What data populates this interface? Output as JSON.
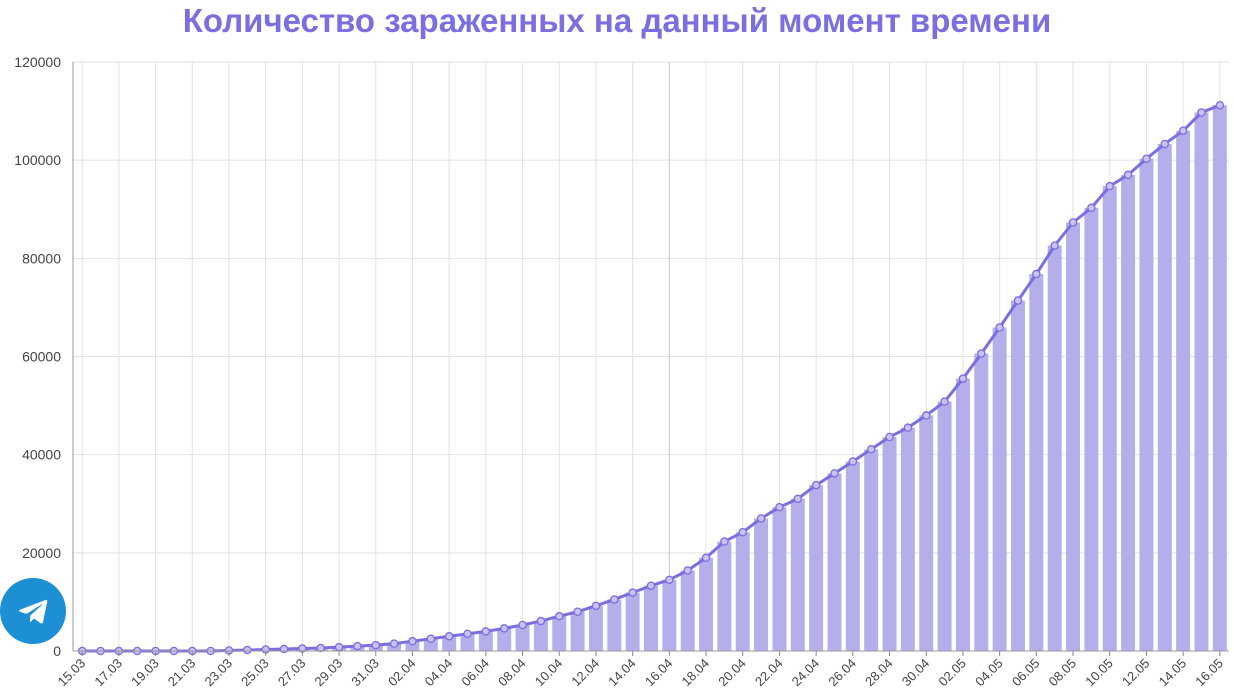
{
  "title": "Количество зараженных на данный момент времени",
  "colors": {
    "bar": "#b4aeea",
    "line": "#7b6ee0",
    "title": "#7b6ee0",
    "telegram": "#1d8fd4"
  },
  "telegram_button": {
    "icon": "telegram-icon"
  },
  "chart_data": {
    "type": "bar",
    "title": "Количество зараженных на данный момент времени",
    "xlabel": "",
    "ylabel": "",
    "ylim": [
      0,
      120000
    ],
    "yticks": [
      0,
      20000,
      40000,
      60000,
      80000,
      100000,
      120000
    ],
    "grid": true,
    "categories": [
      "15.03",
      "16.03",
      "17.03",
      "18.03",
      "19.03",
      "20.03",
      "21.03",
      "22.03",
      "23.03",
      "24.03",
      "25.03",
      "26.03",
      "27.03",
      "28.03",
      "29.03",
      "30.03",
      "31.03",
      "01.04",
      "02.04",
      "03.04",
      "04.04",
      "05.04",
      "06.04",
      "07.04",
      "08.04",
      "09.04",
      "10.04",
      "11.04",
      "12.04",
      "13.04",
      "14.04",
      "15.04",
      "16.04",
      "17.04",
      "18.04",
      "19.04",
      "20.04",
      "21.04",
      "22.04",
      "23.04",
      "24.04",
      "25.04",
      "26.04",
      "27.04",
      "28.04",
      "29.04",
      "30.04",
      "01.05",
      "02.05",
      "03.05",
      "04.05",
      "05.05",
      "06.05",
      "07.05",
      "08.05",
      "09.05",
      "10.05",
      "11.05",
      "12.05",
      "13.05",
      "14.05",
      "15.05",
      "16.05"
    ],
    "x_tick_labels": [
      "15.03",
      "17.03",
      "19.03",
      "21.03",
      "23.03",
      "25.03",
      "27.03",
      "29.03",
      "31.03",
      "02.04",
      "04.04",
      "06.04",
      "08.04",
      "10.04",
      "12.04",
      "14.04",
      "16.04",
      "18.04",
      "20.04",
      "22.04",
      "24.04",
      "26.04",
      "28.04",
      "30.04",
      "02.05",
      "04.05",
      "06.05",
      "08.05",
      "10.05",
      "12.05",
      "14.05",
      "16.05"
    ],
    "series": [
      {
        "type": "bar",
        "values": [
          0,
          0,
          0,
          0,
          0,
          0,
          0,
          0,
          100,
          200,
          300,
          400,
          500,
          600,
          800,
          1000,
          1200,
          1500,
          2000,
          2500,
          3000,
          3500,
          4000,
          4600,
          5300,
          6100,
          7100,
          8000,
          9200,
          10500,
          11900,
          13300,
          14500,
          16400,
          19000,
          22300,
          24200,
          27000,
          29300,
          31000,
          33800,
          36200,
          38600,
          41100,
          43600,
          45500,
          48000,
          50800,
          55500,
          60600,
          65900,
          71400,
          76800,
          82600,
          87300,
          90300,
          94700,
          97000,
          100300,
          103300,
          106000,
          109700,
          111200
        ]
      },
      {
        "type": "line",
        "values": [
          0,
          0,
          0,
          0,
          0,
          0,
          0,
          0,
          100,
          200,
          300,
          400,
          500,
          600,
          800,
          1000,
          1200,
          1500,
          2000,
          2500,
          3000,
          3500,
          4000,
          4600,
          5300,
          6100,
          7100,
          8000,
          9200,
          10500,
          11900,
          13300,
          14500,
          16400,
          19000,
          22300,
          24200,
          27000,
          29300,
          31000,
          33800,
          36200,
          38600,
          41100,
          43600,
          45500,
          48000,
          50800,
          55500,
          60600,
          65900,
          71400,
          76800,
          82600,
          87300,
          90300,
          94700,
          97000,
          100300,
          103300,
          106000,
          109700,
          111200
        ]
      }
    ]
  }
}
